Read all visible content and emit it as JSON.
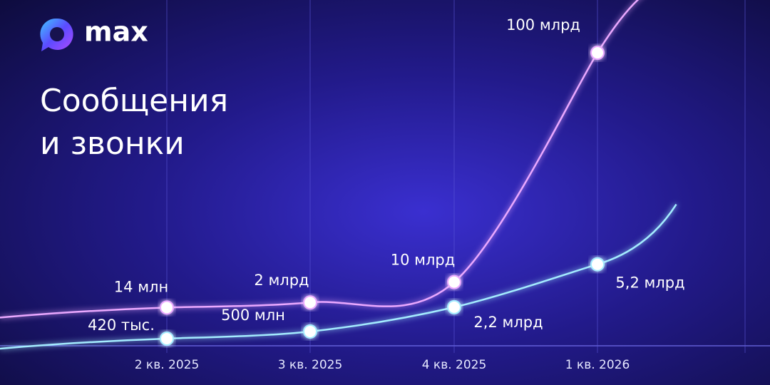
{
  "brand": "max",
  "chart_data": {
    "type": "line",
    "title": [
      "Сообщения",
      "и звонки"
    ],
    "categories": [
      "2 кв. 2025",
      "3 кв. 2025",
      "4 кв. 2025",
      "1 кв. 2026"
    ],
    "series": [
      {
        "color": "#eaa8ff",
        "values": [
          14000000,
          2000000000,
          10000000000,
          100000000000
        ],
        "value_labels": [
          "14 млн",
          "2 млрд",
          "10 млрд",
          "100 млрд"
        ]
      },
      {
        "color": "#a4ecff",
        "axis": "y2",
        "values": [
          420000,
          500000000,
          2200000000,
          5200000000
        ],
        "value_labels": [
          "420 тыс.",
          "500 млн",
          "2,2 млрд",
          "5,2 млрд"
        ]
      }
    ],
    "ylim": [
      -15000000000,
      100000000000
    ],
    "y2lim": [
      -500000000,
      20000000000
    ],
    "grid": true
  }
}
